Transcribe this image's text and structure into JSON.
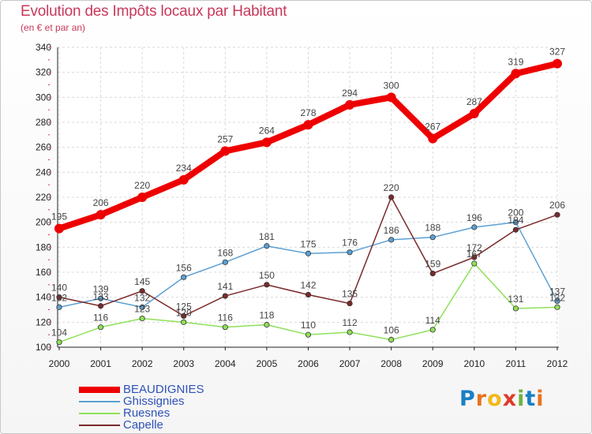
{
  "title": "Evolution des Impôts locaux par Habitant",
  "subtitle": "(en € et par an)",
  "logo": {
    "text": "Proxiti",
    "letters": [
      "P",
      "r",
      "o",
      "x",
      "i",
      "t",
      "i"
    ],
    "colors": [
      "#1b7fc4",
      "#e8731c",
      "#f2b81a",
      "#e03a28",
      "#6db33f",
      "#1b7fc4",
      "#e8731c"
    ]
  },
  "chart_data": {
    "type": "line",
    "x": [
      "2000",
      "2001",
      "2002",
      "2003",
      "2004",
      "2005",
      "2006",
      "2007",
      "2008",
      "2009",
      "2010",
      "2011",
      "2012"
    ],
    "ylim": [
      100,
      340
    ],
    "yticks": [
      100,
      120,
      140,
      160,
      180,
      200,
      220,
      240,
      260,
      280,
      300,
      320,
      340
    ],
    "grid": true,
    "legend": "bottom-left",
    "series": [
      {
        "name": "BEAUDIGNIES",
        "color": "#ee0000",
        "values": [
          195,
          206,
          220,
          234,
          257,
          264,
          278,
          294,
          300,
          267,
          287,
          319,
          327
        ]
      },
      {
        "name": "Ghissignies",
        "color": "#5ca0d3",
        "values": [
          132,
          139,
          132,
          156,
          168,
          181,
          175,
          176,
          186,
          188,
          196,
          200,
          137
        ]
      },
      {
        "name": "Ruesnes",
        "color": "#90e05a",
        "values": [
          104,
          116,
          123,
          120,
          116,
          118,
          110,
          112,
          106,
          114,
          167,
          131,
          132
        ]
      },
      {
        "name": "Capelle",
        "color": "#7a2a2a",
        "values": [
          140,
          133,
          145,
          125,
          141,
          150,
          142,
          135,
          220,
          159,
          172,
          194,
          206
        ]
      }
    ],
    "labels": {
      "BEAUDIGNIES": [
        "195",
        "206",
        "220",
        "234",
        "257",
        "264",
        "278",
        "294",
        "300",
        "267",
        "287",
        "319",
        "327"
      ],
      "Ghissignies": [
        "132",
        "139",
        "132",
        "156",
        "168",
        "181",
        "175",
        "176",
        "186",
        "188",
        "196",
        "200",
        "137"
      ],
      "Ruesnes": [
        "104",
        "116",
        "123",
        "120",
        "116",
        "118",
        "110",
        "112",
        "106",
        "114",
        "167",
        "131",
        "132"
      ],
      "Capelle": [
        "140",
        "133",
        "145",
        "125",
        "141",
        "150",
        "142",
        "135",
        "220",
        "159",
        "172",
        "194",
        "206"
      ]
    }
  }
}
